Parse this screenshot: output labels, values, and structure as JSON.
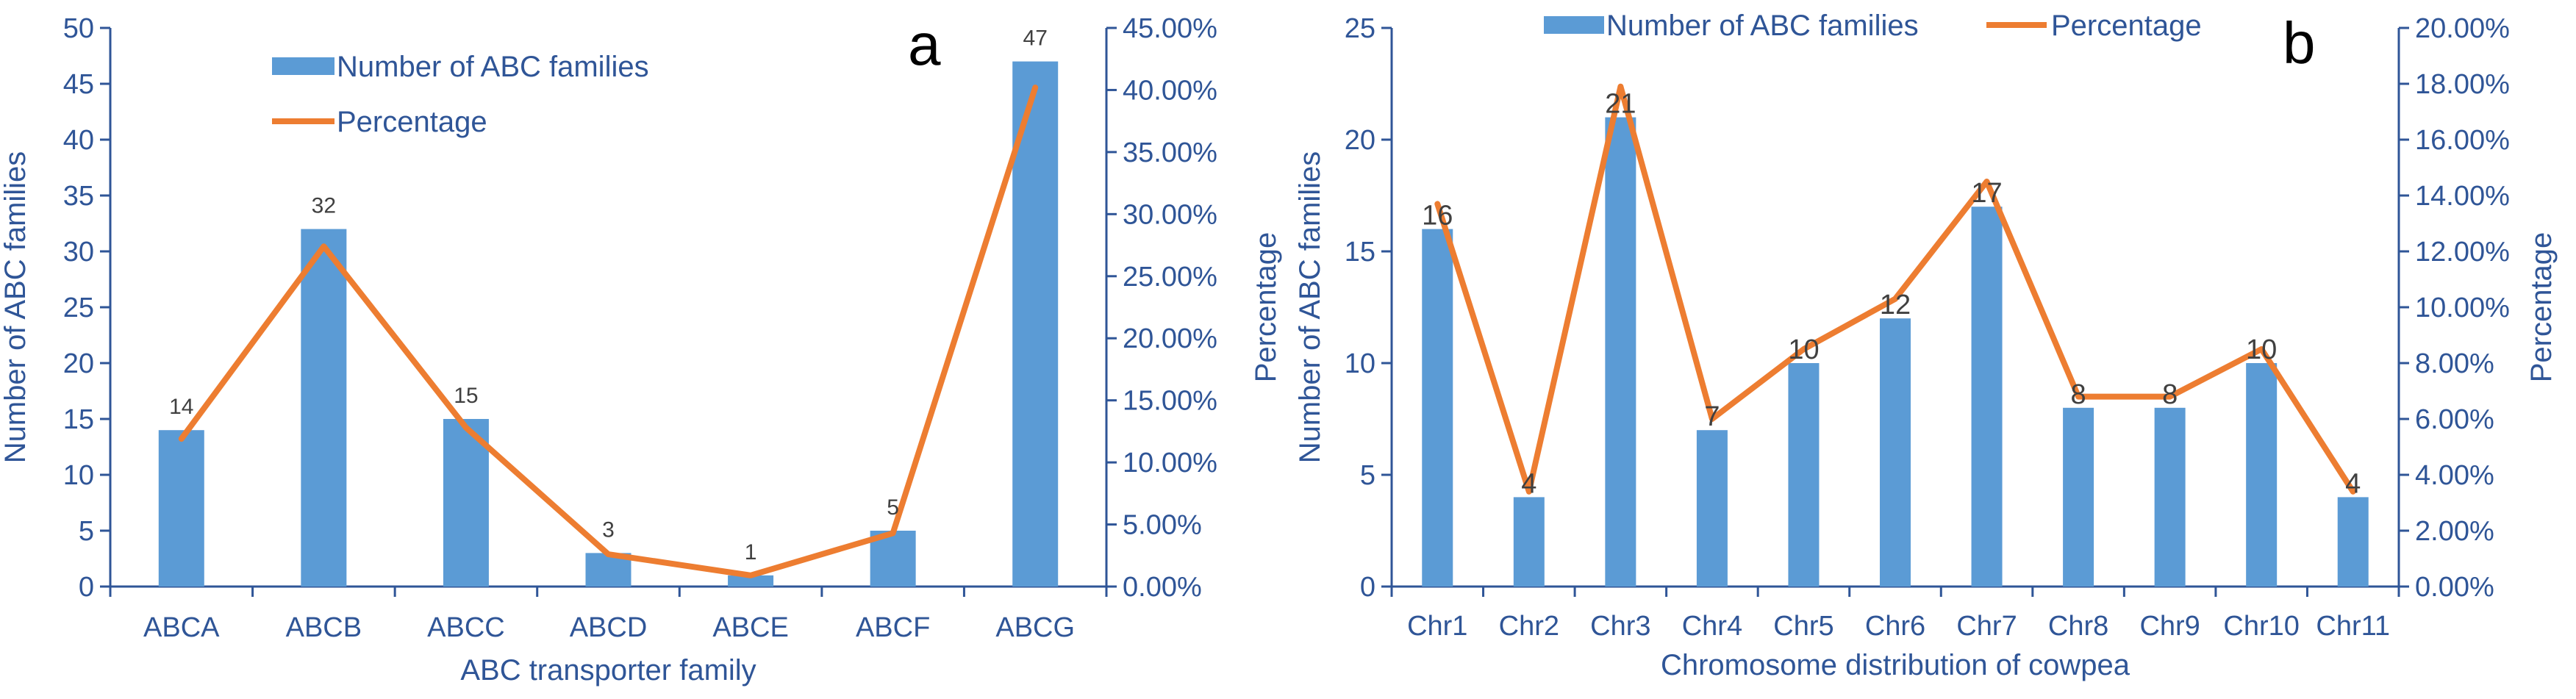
{
  "colors": {
    "bar": "#5B9BD5",
    "line": "#ED7D31",
    "axis": "#2F5597"
  },
  "chart_data": [
    {
      "type": "bar",
      "panel_label": "a",
      "categories": [
        "ABCA",
        "ABCB",
        "ABCC",
        "ABCD",
        "ABCE",
        "ABCF",
        "ABCG"
      ],
      "series": [
        {
          "name": "Number of ABC families",
          "type": "bar",
          "axis": "left",
          "values": [
            14,
            32,
            15,
            3,
            1,
            5,
            47
          ]
        },
        {
          "name": "Percentage",
          "type": "line",
          "axis": "right",
          "values": [
            11.9,
            27.4,
            12.8,
            2.6,
            0.9,
            4.3,
            40.2
          ]
        }
      ],
      "data_labels": [
        "14",
        "32",
        "15",
        "3",
        "1",
        "5",
        "47"
      ],
      "xlabel": "ABC transporter family",
      "ylabel": "Number of ABC families",
      "y2label": "Percentage",
      "ylim": [
        0,
        50
      ],
      "y2lim": [
        0,
        45
      ],
      "yticks": [
        "0",
        "5",
        "10",
        "15",
        "20",
        "25",
        "30",
        "35",
        "40",
        "45",
        "50"
      ],
      "y2ticks": [
        "0.00%",
        "5.00%",
        "10.00%",
        "15.00%",
        "20.00%",
        "25.00%",
        "30.00%",
        "35.00%",
        "40.00%",
        "45.00%"
      ],
      "legend": [
        "Number of ABC families",
        "Percentage"
      ]
    },
    {
      "type": "bar",
      "panel_label": "b",
      "categories": [
        "Chr1",
        "Chr2",
        "Chr3",
        "Chr4",
        "Chr5",
        "Chr6",
        "Chr7",
        "Chr8",
        "Chr9",
        "Chr10",
        "Chr11"
      ],
      "series": [
        {
          "name": "Number of ABC families",
          "type": "bar",
          "axis": "left",
          "values": [
            16,
            4,
            21,
            7,
            10,
            12,
            17,
            8,
            8,
            10,
            4
          ]
        },
        {
          "name": "Percentage",
          "type": "line",
          "axis": "right",
          "values": [
            13.7,
            3.4,
            17.9,
            6.0,
            8.5,
            10.3,
            14.5,
            6.8,
            6.8,
            8.5,
            3.4
          ]
        }
      ],
      "data_labels": [
        "16",
        "4",
        "21",
        "7",
        "10",
        "12",
        "17",
        "8",
        "8",
        "10",
        "4"
      ],
      "xlabel": "Chromosome distribution of cowpea",
      "ylabel": "Number of ABC families",
      "y2label": "Percentage",
      "ylim": [
        0,
        25
      ],
      "y2lim": [
        0,
        20
      ],
      "yticks": [
        "0",
        "5",
        "10",
        "15",
        "20",
        "25"
      ],
      "y2ticks": [
        "0.00%",
        "2.00%",
        "4.00%",
        "6.00%",
        "8.00%",
        "10.00%",
        "12.00%",
        "14.00%",
        "16.00%",
        "18.00%",
        "20.00%"
      ],
      "legend": [
        "Number of ABC families",
        "Percentage"
      ]
    }
  ]
}
